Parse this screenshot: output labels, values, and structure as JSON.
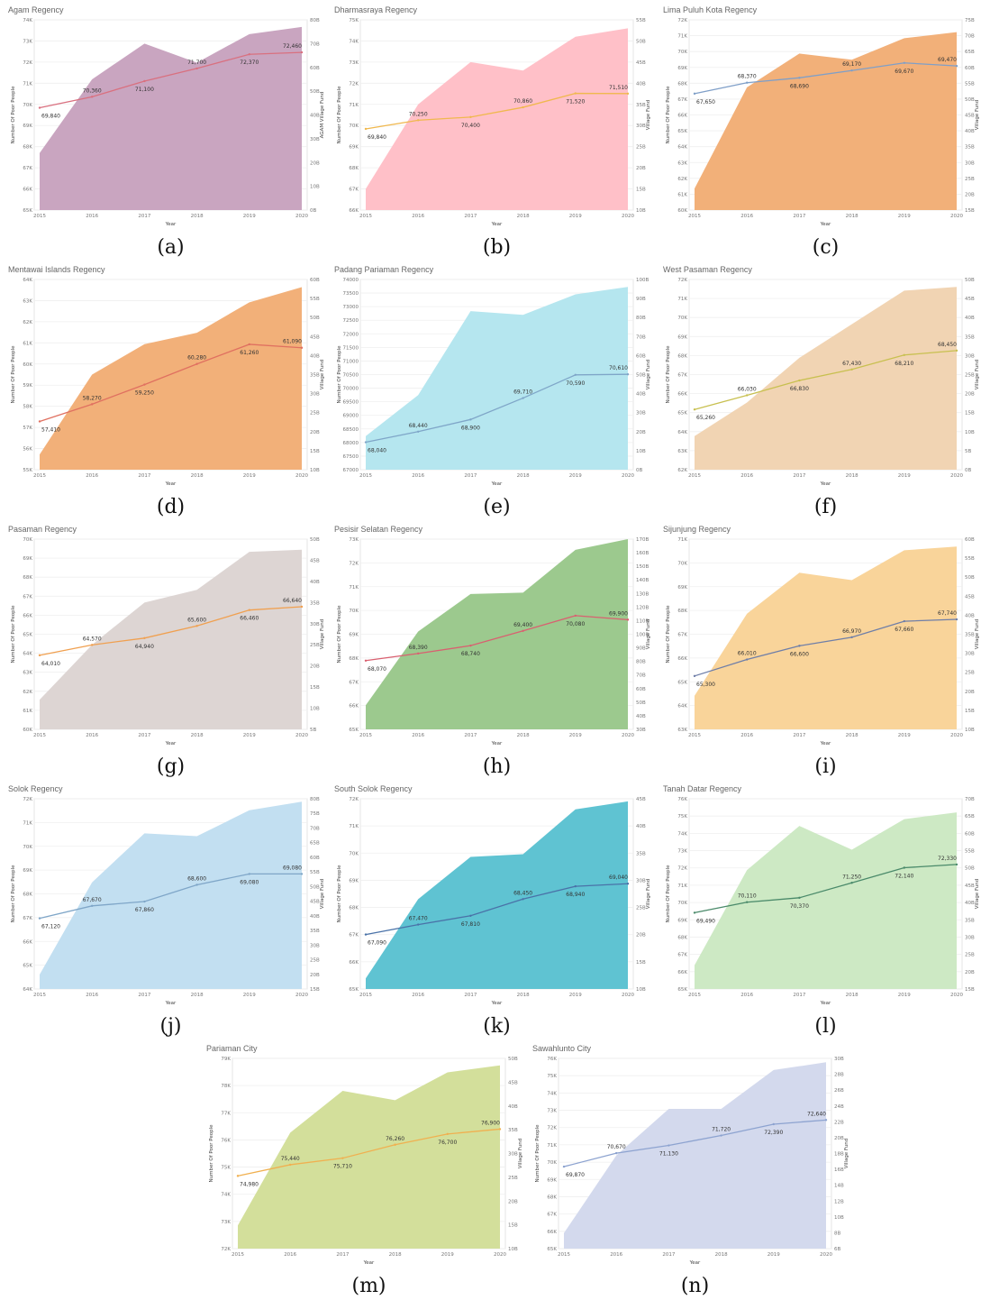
{
  "chart_data": [
    {
      "type": "area+line",
      "title": "Agam Regency",
      "caption": "(a)",
      "xlabel": "Year",
      "ylabel": "Number Of Poor People",
      "y2label": "AGAM Village Fund",
      "x": [
        "2015",
        "2016",
        "2017",
        "2018",
        "2019",
        "2020"
      ],
      "yticks": [
        "65K",
        "66K",
        "67K",
        "68K",
        "69K",
        "70K",
        "71K",
        "72K",
        "73K",
        "74K"
      ],
      "ylim": [
        65000,
        74000
      ],
      "y2ticks": [
        "0B",
        "10B",
        "20B",
        "30B",
        "40B",
        "50B",
        "60B",
        "70B",
        "80B"
      ],
      "y2lim": [
        0,
        80
      ],
      "fund": [
        24,
        55,
        70,
        62,
        74,
        77
      ],
      "poor": [
        69840,
        70360,
        71100,
        71700,
        72370,
        72460
      ],
      "poor_labels": [
        "69,840",
        "70,360",
        "71,100",
        "71,700",
        "72,370",
        "72,460"
      ],
      "area_color": "#c9a5c0",
      "line_color": "#d9707f"
    },
    {
      "type": "area+line",
      "title": "Dharmasraya Regency",
      "caption": "(b)",
      "xlabel": "Year",
      "ylabel": "Number Of Poor People",
      "y2label": "Village Fund",
      "x": [
        "2015",
        "2016",
        "2017",
        "2018",
        "2019",
        "2020"
      ],
      "yticks": [
        "66K",
        "67K",
        "68K",
        "69K",
        "70K",
        "71K",
        "72K",
        "73K",
        "74K",
        "75K"
      ],
      "ylim": [
        66000,
        75000
      ],
      "y2ticks": [
        "10B",
        "15B",
        "20B",
        "25B",
        "30B",
        "35B",
        "40B",
        "45B",
        "50B",
        "55B"
      ],
      "y2lim": [
        10,
        55
      ],
      "fund": [
        15,
        35,
        45,
        43,
        51,
        53
      ],
      "poor": [
        69840,
        70250,
        70400,
        70860,
        71520,
        71510
      ],
      "poor_labels": [
        "69,840",
        "70,250",
        "70,400",
        "70,860",
        "71,520",
        "71,510"
      ],
      "area_color": "#ffc0c8",
      "line_color": "#f0b84e"
    },
    {
      "type": "area+line",
      "title": "Lima Puluh Kota Regency",
      "caption": "(c)",
      "xlabel": "Year",
      "ylabel": "Number Of Poor People",
      "y2label": "Village Fund",
      "x": [
        "2015",
        "2016",
        "2017",
        "2018",
        "2019",
        "2020"
      ],
      "yticks": [
        "60K",
        "61K",
        "62K",
        "63K",
        "64K",
        "65K",
        "66K",
        "67K",
        "68K",
        "69K",
        "70K",
        "71K",
        "72K"
      ],
      "ylim": [
        60000,
        72500
      ],
      "y2ticks": [
        "15B",
        "20B",
        "25B",
        "30B",
        "35B",
        "40B",
        "45B",
        "50B",
        "55B",
        "60B",
        "65B",
        "70B",
        "75B"
      ],
      "y2lim": [
        15,
        77
      ],
      "fund": [
        22,
        55,
        66,
        64,
        71,
        73
      ],
      "poor": [
        67650,
        68370,
        68690,
        69170,
        69670,
        69470
      ],
      "poor_labels": [
        "67,650",
        "68,370",
        "68,690",
        "69,170",
        "69,670",
        "69,470"
      ],
      "area_color": "#f2b079",
      "line_color": "#7f9fc8"
    },
    {
      "type": "area+line",
      "title": "Mentawai Islands Regency",
      "caption": "(d)",
      "xlabel": "Year",
      "ylabel": "Number Of Poor People",
      "y2label": "Village Fund",
      "x": [
        "2015",
        "2016",
        "2017",
        "2018",
        "2019",
        "2020"
      ],
      "yticks": [
        "55K",
        "56K",
        "57K",
        "58K",
        "59K",
        "60K",
        "61K",
        "62K",
        "63K",
        "64K"
      ],
      "ylim": [
        55000,
        64500
      ],
      "y2ticks": [
        "10B",
        "15B",
        "20B",
        "25B",
        "30B",
        "35B",
        "40B",
        "45B",
        "50B",
        "55B",
        "60B"
      ],
      "y2lim": [
        10,
        60
      ],
      "fund": [
        14,
        35,
        43,
        46,
        54,
        58
      ],
      "poor": [
        57410,
        58270,
        59250,
        60280,
        61260,
        61090
      ],
      "poor_labels": [
        "57,410",
        "58,270",
        "59,250",
        "60,280",
        "61,260",
        "61,090"
      ],
      "area_color": "#f2b079",
      "line_color": "#e07060"
    },
    {
      "type": "area+line",
      "title": "Padang Pariaman Regency",
      "caption": "(e)",
      "xlabel": "Year",
      "ylabel": "Number Of Poor People",
      "y2label": "Village Fund",
      "x": [
        "2015",
        "2016",
        "2017",
        "2018",
        "2019",
        "2020"
      ],
      "yticks": [
        "67000",
        "67500",
        "68000",
        "68500",
        "69000",
        "69500",
        "70000",
        "70500",
        "71000",
        "71500",
        "72000",
        "72500",
        "73000",
        "73500",
        "74000"
      ],
      "ylim": [
        67000,
        74200
      ],
      "y2ticks": [
        "0B",
        "10B",
        "20B",
        "30B",
        "40B",
        "50B",
        "60B",
        "70B",
        "80B",
        "90B",
        "100B"
      ],
      "y2lim": [
        0,
        102
      ],
      "fund": [
        18,
        40,
        85,
        83,
        94,
        98
      ],
      "poor": [
        68040,
        68440,
        68900,
        69710,
        70590,
        70610
      ],
      "poor_labels": [
        "68,040",
        "68,440",
        "68,900",
        "69,710",
        "70,590",
        "70,610"
      ],
      "area_color": "#b5e6ef",
      "line_color": "#7fa6c8"
    },
    {
      "type": "area+line",
      "title": "West Pasaman Regency",
      "caption": "(f)",
      "xlabel": "Year",
      "ylabel": "Number Of Poor People",
      "y2label": "Village Fund",
      "x": [
        "2015",
        "2016",
        "2017",
        "2018",
        "2019",
        "2020"
      ],
      "yticks": [
        "62K",
        "63K",
        "64K",
        "65K",
        "66K",
        "67K",
        "68K",
        "69K",
        "70K",
        "71K",
        "72K"
      ],
      "ylim": [
        62000,
        72300
      ],
      "y2ticks": [
        "0B",
        "5B",
        "10B",
        "15B",
        "20B",
        "25B",
        "30B",
        "35B",
        "40B",
        "45B",
        "50B"
      ],
      "y2lim": [
        0,
        51
      ],
      "fund": [
        9,
        18,
        30,
        39,
        48,
        49
      ],
      "poor": [
        65260,
        66030,
        66830,
        67430,
        68210,
        68450
      ],
      "poor_labels": [
        "65,260",
        "66,030",
        "66,830",
        "67,430",
        "68,210",
        "68,450"
      ],
      "area_color": "#f1d4b3",
      "line_color": "#c8c050"
    },
    {
      "type": "area+line",
      "title": "Pasaman Regency",
      "caption": "(g)",
      "xlabel": "Year",
      "ylabel": "Number Of Poor People",
      "y2label": "Village Fund",
      "x": [
        "2015",
        "2016",
        "2017",
        "2018",
        "2019",
        "2020"
      ],
      "yticks": [
        "60K",
        "61K",
        "62K",
        "63K",
        "64K",
        "65K",
        "66K",
        "67K",
        "68K",
        "69K",
        "70K"
      ],
      "ylim": [
        60000,
        70300
      ],
      "y2ticks": [
        "5B",
        "10B",
        "15B",
        "20B",
        "25B",
        "30B",
        "35B",
        "40B",
        "45B",
        "50B"
      ],
      "y2lim": [
        5,
        50
      ],
      "fund": [
        12,
        25,
        35,
        38,
        47,
        47.5
      ],
      "poor": [
        64010,
        64570,
        64940,
        65600,
        66460,
        66640
      ],
      "poor_labels": [
        "64,010",
        "64,570",
        "64,940",
        "65,600",
        "66,460",
        "66,640"
      ],
      "area_color": "#ddd5d3",
      "line_color": "#f0a050"
    },
    {
      "type": "area+line",
      "title": "Pesisir Selatan Regency",
      "caption": "(h)",
      "xlabel": "Year",
      "ylabel": "Number Of Poor People",
      "y2label": "Village Fund",
      "x": [
        "2015",
        "2016",
        "2017",
        "2018",
        "2019",
        "2020"
      ],
      "yticks": [
        "65K",
        "66K",
        "67K",
        "68K",
        "69K",
        "70K",
        "71K",
        "72K",
        "73K"
      ],
      "ylim": [
        65000,
        73500
      ],
      "y2ticks": [
        "30B",
        "40B",
        "50B",
        "60B",
        "70B",
        "80B",
        "90B",
        "100B",
        "110B",
        "120B",
        "130B",
        "140B",
        "150B",
        "160B",
        "170B"
      ],
      "y2lim": [
        30,
        172
      ],
      "fund": [
        48,
        103,
        131,
        132,
        164,
        172
      ],
      "poor": [
        68070,
        68390,
        68740,
        69400,
        70080,
        69900
      ],
      "poor_labels": [
        "68,070",
        "68,390",
        "68,740",
        "69,400",
        "70,080",
        "69,900"
      ],
      "area_color": "#9cc98e",
      "line_color": "#d96070"
    },
    {
      "type": "area+line",
      "title": "Sijunjung Regency",
      "caption": "(i)",
      "xlabel": "Year",
      "ylabel": "Number Of Poor People",
      "y2label": "Village Fund",
      "x": [
        "2015",
        "2016",
        "2017",
        "2018",
        "2019",
        "2020"
      ],
      "yticks": [
        "63K",
        "64K",
        "65K",
        "66K",
        "67K",
        "68K",
        "69K",
        "70K",
        "71K"
      ],
      "ylim": [
        63000,
        71200
      ],
      "y2ticks": [
        "10B",
        "15B",
        "20B",
        "25B",
        "30B",
        "35B",
        "40B",
        "45B",
        "50B",
        "55B",
        "60B"
      ],
      "y2lim": [
        10,
        61
      ],
      "fund": [
        19,
        41,
        52,
        50,
        58,
        59
      ],
      "poor": [
        65300,
        66010,
        66600,
        66970,
        67660,
        67740
      ],
      "poor_labels": [
        "65,300",
        "66,010",
        "66,600",
        "66,970",
        "67,660",
        "67,740"
      ],
      "area_color": "#f9d49a",
      "line_color": "#6e7ea8"
    },
    {
      "type": "area+line",
      "title": "Solok Regency",
      "caption": "(j)",
      "xlabel": "Year",
      "ylabel": "Number Of Poor People",
      "y2label": "Village Fund",
      "x": [
        "2015",
        "2016",
        "2017",
        "2018",
        "2019",
        "2020"
      ],
      "yticks": [
        "64K",
        "65K",
        "66K",
        "67K",
        "68K",
        "69K",
        "70K",
        "71K",
        "72K"
      ],
      "ylim": [
        64000,
        72400
      ],
      "y2ticks": [
        "15B",
        "20B",
        "25B",
        "30B",
        "35B",
        "40B",
        "45B",
        "50B",
        "55B",
        "60B",
        "65B",
        "70B",
        "75B",
        "80B"
      ],
      "y2lim": [
        15,
        81
      ],
      "fund": [
        20,
        52,
        69,
        68,
        77,
        80
      ],
      "poor": [
        67120,
        67670,
        67860,
        68600,
        69080,
        69080
      ],
      "poor_labels": [
        "67,120",
        "67,670",
        "67,860",
        "68,600",
        "69,080",
        "69,080"
      ],
      "area_color": "#c2dff1",
      "line_color": "#7fa6c8"
    },
    {
      "type": "area+line",
      "title": "South Solok Regency",
      "caption": "(k)",
      "xlabel": "Year",
      "ylabel": "Number Of Poor People",
      "y2label": "Village Fund",
      "x": [
        "2015",
        "2016",
        "2017",
        "2018",
        "2019",
        "2020"
      ],
      "yticks": [
        "65K",
        "66K",
        "67K",
        "68K",
        "69K",
        "70K",
        "71K",
        "72K"
      ],
      "ylim": [
        65000,
        72300
      ],
      "y2ticks": [
        "10B",
        "15B",
        "20B",
        "25B",
        "30B",
        "35B",
        "40B",
        "45B"
      ],
      "y2lim": [
        10,
        46
      ],
      "fund": [
        12,
        27,
        35,
        35.5,
        44,
        45.5
      ],
      "poor": [
        67090,
        67470,
        67810,
        68450,
        68940,
        69040
      ],
      "poor_labels": [
        "67,090",
        "67,470",
        "67,810",
        "68,450",
        "68,940",
        "69,040"
      ],
      "area_color": "#5fc3d2",
      "line_color": "#4a72a8"
    },
    {
      "type": "area+line",
      "title": "Tanah Datar Regency",
      "caption": "(l)",
      "xlabel": "Year",
      "ylabel": "Number Of Poor People",
      "y2label": "Village Fund",
      "x": [
        "2015",
        "2016",
        "2017",
        "2018",
        "2019",
        "2020"
      ],
      "yticks": [
        "65K",
        "66K",
        "67K",
        "68K",
        "69K",
        "70K",
        "71K",
        "72K",
        "73K",
        "74K",
        "75K",
        "76K"
      ],
      "ylim": [
        65000,
        76200
      ],
      "y2ticks": [
        "15B",
        "20B",
        "25B",
        "30B",
        "35B",
        "40B",
        "45B",
        "50B",
        "55B",
        "60B",
        "65B",
        "70B"
      ],
      "y2lim": [
        15,
        71
      ],
      "fund": [
        22,
        50,
        63,
        56,
        65,
        67
      ],
      "poor": [
        69490,
        70110,
        70370,
        71250,
        72140,
        72330
      ],
      "poor_labels": [
        "69,490",
        "70,110",
        "70,370",
        "71,250",
        "72,140",
        "72,330"
      ],
      "area_color": "#cde9c4",
      "line_color": "#4a8a6a"
    },
    {
      "type": "area+line",
      "title": "Pariaman City",
      "caption": "(m)",
      "xlabel": "Year",
      "ylabel": "Number Of Poor People",
      "y2label": "Village Fund",
      "x": [
        "2015",
        "2016",
        "2017",
        "2018",
        "2019",
        "2020"
      ],
      "yticks": [
        "72K",
        "73K",
        "74K",
        "75K",
        "76K",
        "77K",
        "78K",
        "79K"
      ],
      "ylim": [
        72000,
        79800
      ],
      "y2ticks": [
        "10B",
        "15B",
        "20B",
        "25B",
        "30B",
        "35B",
        "40B",
        "45B",
        "50B"
      ],
      "y2lim": [
        10,
        51
      ],
      "fund": [
        15,
        35,
        44,
        42,
        48,
        49.5
      ],
      "poor": [
        74980,
        75440,
        75710,
        76260,
        76700,
        76900
      ],
      "poor_labels": [
        "74,980",
        "75,440",
        "75,710",
        "76,260",
        "76,700",
        "76,900"
      ],
      "area_color": "#d3df9b",
      "line_color": "#f0b050"
    },
    {
      "type": "area+line",
      "title": "Sawahlunto City",
      "caption": "(n)",
      "xlabel": "Year",
      "ylabel": "Number Of Poor People",
      "y2label": "Village Fund",
      "x": [
        "2015",
        "2016",
        "2017",
        "2018",
        "2019",
        "2020"
      ],
      "yticks": [
        "65K",
        "66K",
        "67K",
        "68K",
        "69K",
        "70K",
        "71K",
        "72K",
        "73K",
        "74K",
        "75K",
        "76K"
      ],
      "ylim": [
        65000,
        76300
      ],
      "y2ticks": [
        "6B",
        "8B",
        "10B",
        "12B",
        "14B",
        "16B",
        "18B",
        "20B",
        "22B",
        "24B",
        "26B",
        "28B",
        "30B"
      ],
      "y2lim": [
        6,
        30.5
      ],
      "fund": [
        8,
        18,
        24,
        24,
        29,
        30
      ],
      "poor": [
        69870,
        70670,
        71130,
        71720,
        72390,
        72640
      ],
      "poor_labels": [
        "69,870",
        "70,670",
        "71,130",
        "71,720",
        "72,390",
        "72,640"
      ],
      "area_color": "#d3d9ed",
      "line_color": "#8da3d0"
    }
  ]
}
